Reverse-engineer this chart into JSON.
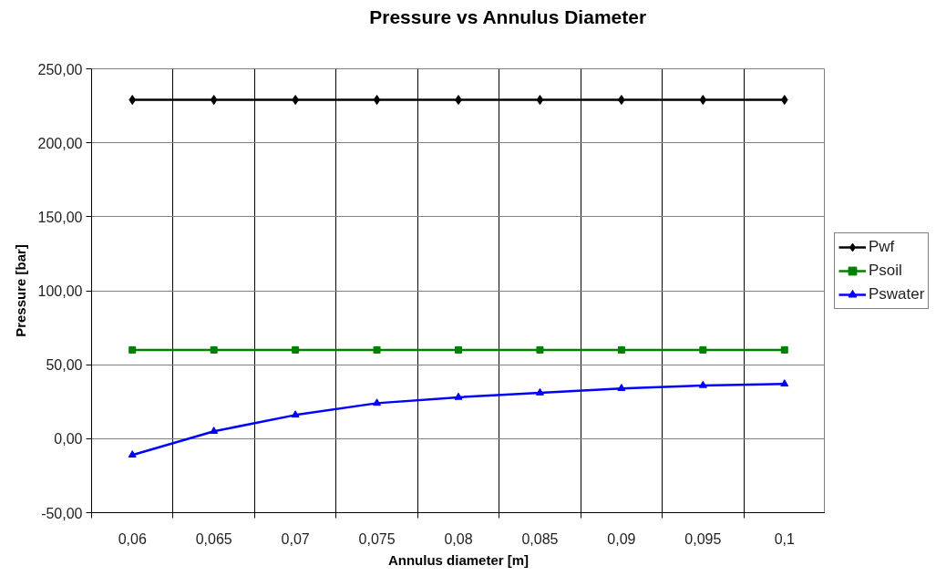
{
  "chart_data": {
    "type": "line",
    "title": "Pressure vs Annulus Diameter",
    "xlabel": "Annulus diameter [m]",
    "ylabel": "Pressure [bar]",
    "categories": [
      "0,06",
      "0,065",
      "0,07",
      "0,075",
      "0,08",
      "0,085",
      "0,09",
      "0,095",
      "0,1"
    ],
    "series": [
      {
        "name": "Pwf",
        "color": "#000000",
        "marker": "diamond",
        "values": [
          229,
          229,
          229,
          229,
          229,
          229,
          229,
          229,
          229
        ]
      },
      {
        "name": "Psoil",
        "color": "#008000",
        "marker": "square",
        "values": [
          60,
          60,
          60,
          60,
          60,
          60,
          60,
          60,
          60
        ]
      },
      {
        "name": "Pswater",
        "color": "#0000ff",
        "marker": "triangle",
        "values": [
          -11,
          5,
          16,
          24,
          28,
          31,
          34,
          36,
          37
        ]
      }
    ],
    "ylim": [
      -50,
      250
    ],
    "yticks": [
      {
        "value": -50,
        "label": "-50,00"
      },
      {
        "value": 0,
        "label": "0,00"
      },
      {
        "value": 50,
        "label": "50,00"
      },
      {
        "value": 100,
        "label": "100,00"
      },
      {
        "value": 150,
        "label": "150,00"
      },
      {
        "value": 200,
        "label": "200,00"
      },
      {
        "value": 250,
        "label": "250,00"
      }
    ],
    "grid": true,
    "legend": "right",
    "line_style": "solid"
  }
}
